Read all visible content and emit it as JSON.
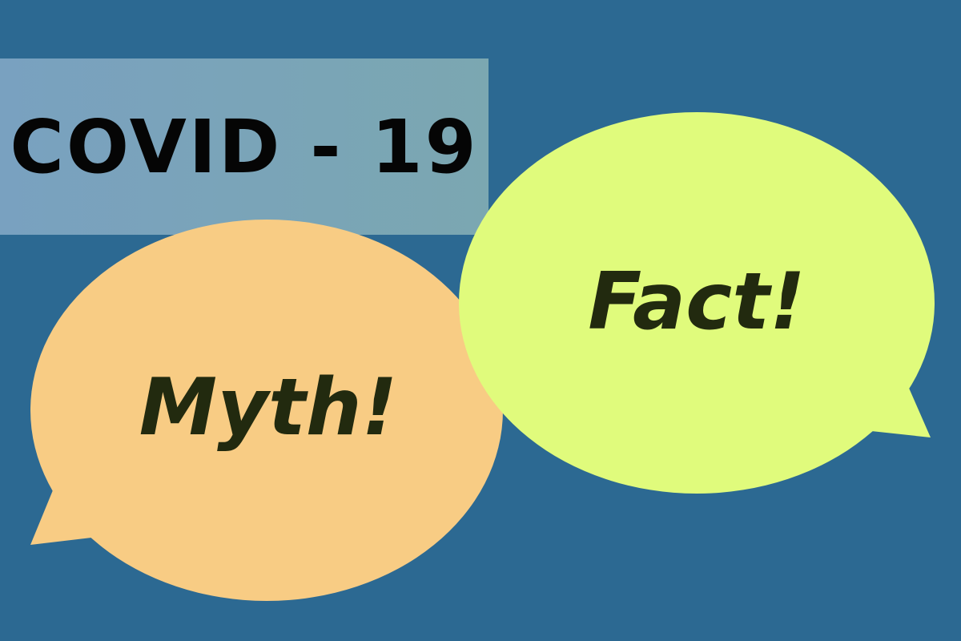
{
  "title": "COVID - 19",
  "bubbles": {
    "myth": {
      "label": "Myth!"
    },
    "fact": {
      "label": "Fact!"
    }
  },
  "colors": {
    "background": "#2c6992",
    "title_band_left": "#79a1c0",
    "title_band_right": "#7ba7b1",
    "myth_bubble": "#f8cc84",
    "fact_bubble": "#e0fb7c",
    "bubble_text": "#222a0f",
    "title_text": "#050505"
  }
}
